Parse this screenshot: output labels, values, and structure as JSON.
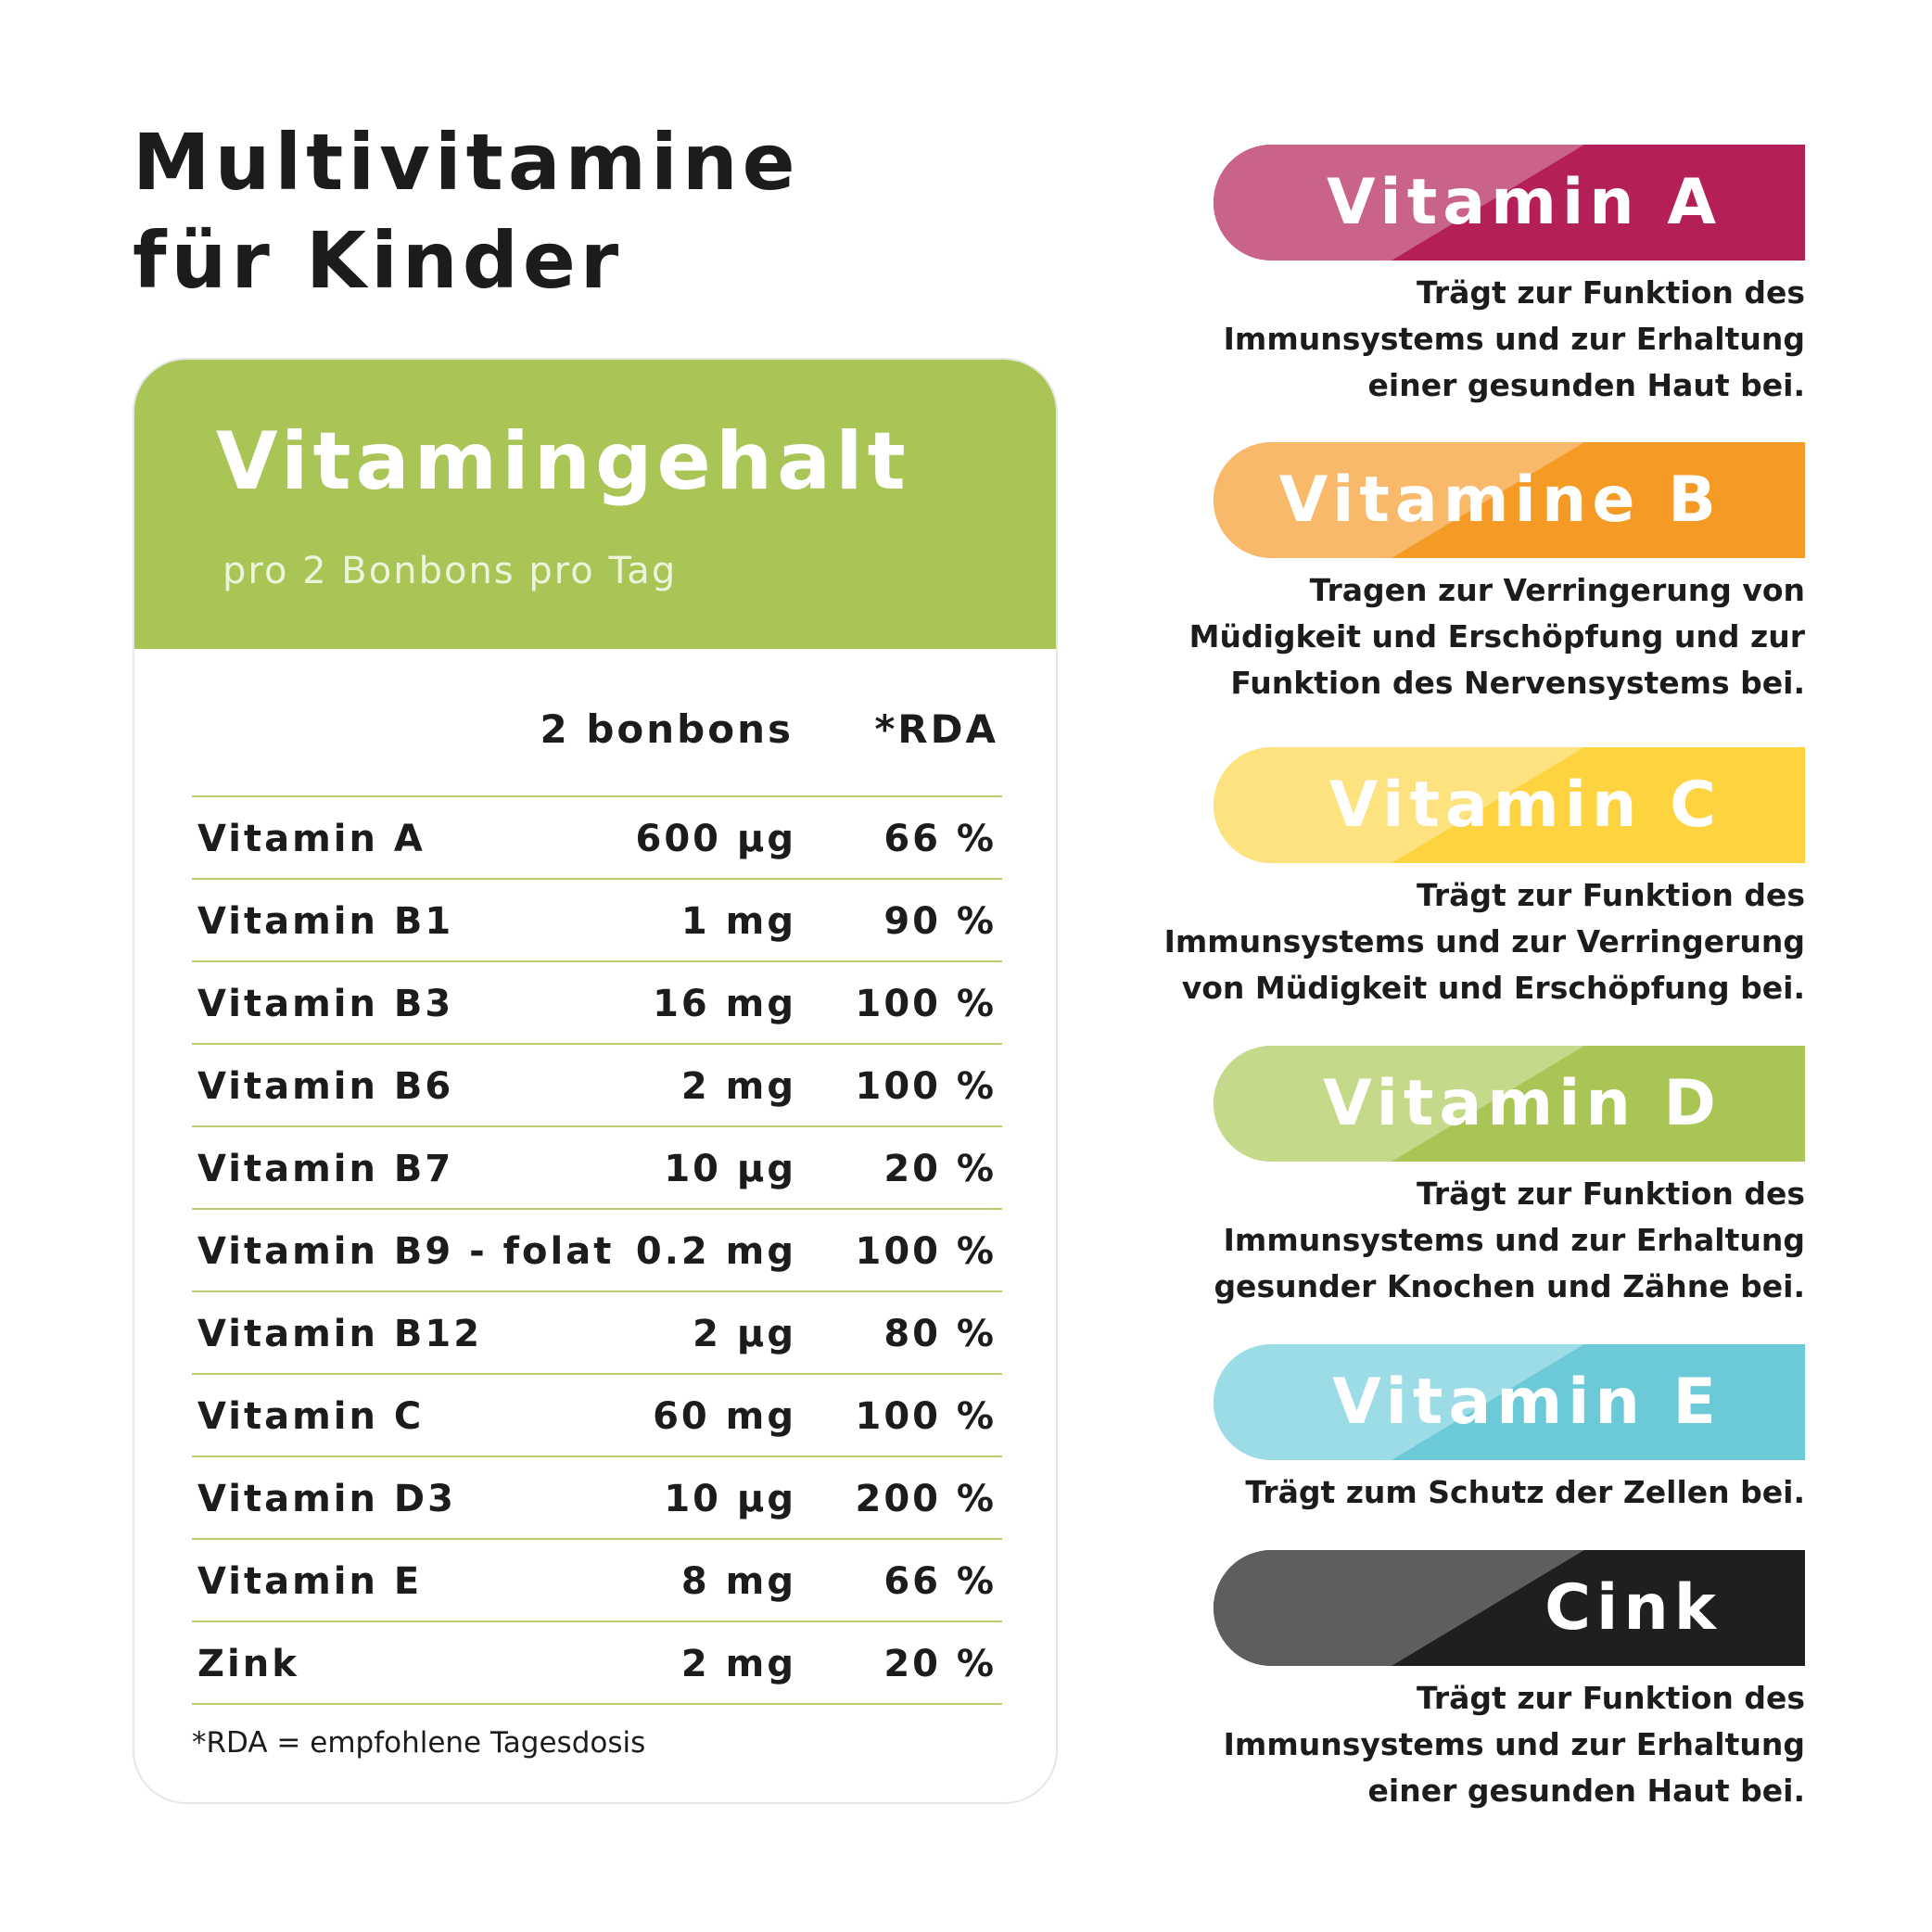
{
  "title": {
    "line1": "Multivitamine",
    "line2": "für Kinder"
  },
  "card": {
    "heading": "Vitamingehalt",
    "subheading": "pro 2 Bonbons pro Tag",
    "col_amount": "2 bonbons",
    "col_rda": "*RDA",
    "rows": [
      {
        "name": "Vitamin A",
        "amount": "600 µg",
        "rda": "66 %"
      },
      {
        "name": "Vitamin B1",
        "amount": "1 mg",
        "rda": "90 %"
      },
      {
        "name": "Vitamin B3",
        "amount": "16 mg",
        "rda": "100 %"
      },
      {
        "name": "Vitamin B6",
        "amount": "2 mg",
        "rda": "100 %"
      },
      {
        "name": "Vitamin B7",
        "amount": "10 µg",
        "rda": "20 %"
      },
      {
        "name": "Vitamin B9 - folat",
        "amount": "0.2 mg",
        "rda": "100 %"
      },
      {
        "name": "Vitamin B12",
        "amount": "2 µg",
        "rda": "80 %"
      },
      {
        "name": "Vitamin C",
        "amount": "60 mg",
        "rda": "100 %"
      },
      {
        "name": "Vitamin D3",
        "amount": "10 µg",
        "rda": "200 %"
      },
      {
        "name": "Vitamin E",
        "amount": "8 mg",
        "rda": "66 %"
      },
      {
        "name": "Zink",
        "amount": "2 mg",
        "rda": "20 %"
      }
    ],
    "footnote": "*RDA = empfohlene Tagesdosis"
  },
  "vitamins": [
    {
      "label": "Vitamin A",
      "dark": "#b41f57",
      "light": "#c9638a",
      "lines": [
        "Trägt zur Funktion des",
        "Immunsystems und zur Erhaltung",
        "einer gesunden Haut bei."
      ]
    },
    {
      "label": "Vitamine B",
      "dark": "#f59a25",
      "light": "#f8b96a",
      "lines": [
        "Tragen zur Verringerung von",
        "Müdigkeit und Erschöpfung und zur",
        "Funktion des Nervensystems bei."
      ]
    },
    {
      "label": "Vitamin C",
      "dark": "#fdd43f",
      "light": "#fde27f",
      "lines": [
        "Trägt zur Funktion des",
        "Immunsystems und zur Verringerung",
        "von Müdigkeit und Erschöpfung bei."
      ]
    },
    {
      "label": "Vitamin D",
      "dark": "#a8c556",
      "light": "#c5d98b",
      "lines": [
        "Trägt zur Funktion des",
        "Immunsystems und zur Erhaltung",
        "gesunder Knochen und Zähne bei."
      ]
    },
    {
      "label": "Vitamin E",
      "dark": "#6bc9d8",
      "light": "#9bdce6",
      "lines": [
        "Trägt zum Schutz der Zellen bei."
      ]
    },
    {
      "label": "Cink",
      "dark": "#1f1f1f",
      "light": "#5e5e5e",
      "lines": [
        "Trägt zur Funktion des",
        "Immunsystems und zur Erhaltung",
        "einer gesunden Haut bei."
      ]
    }
  ]
}
